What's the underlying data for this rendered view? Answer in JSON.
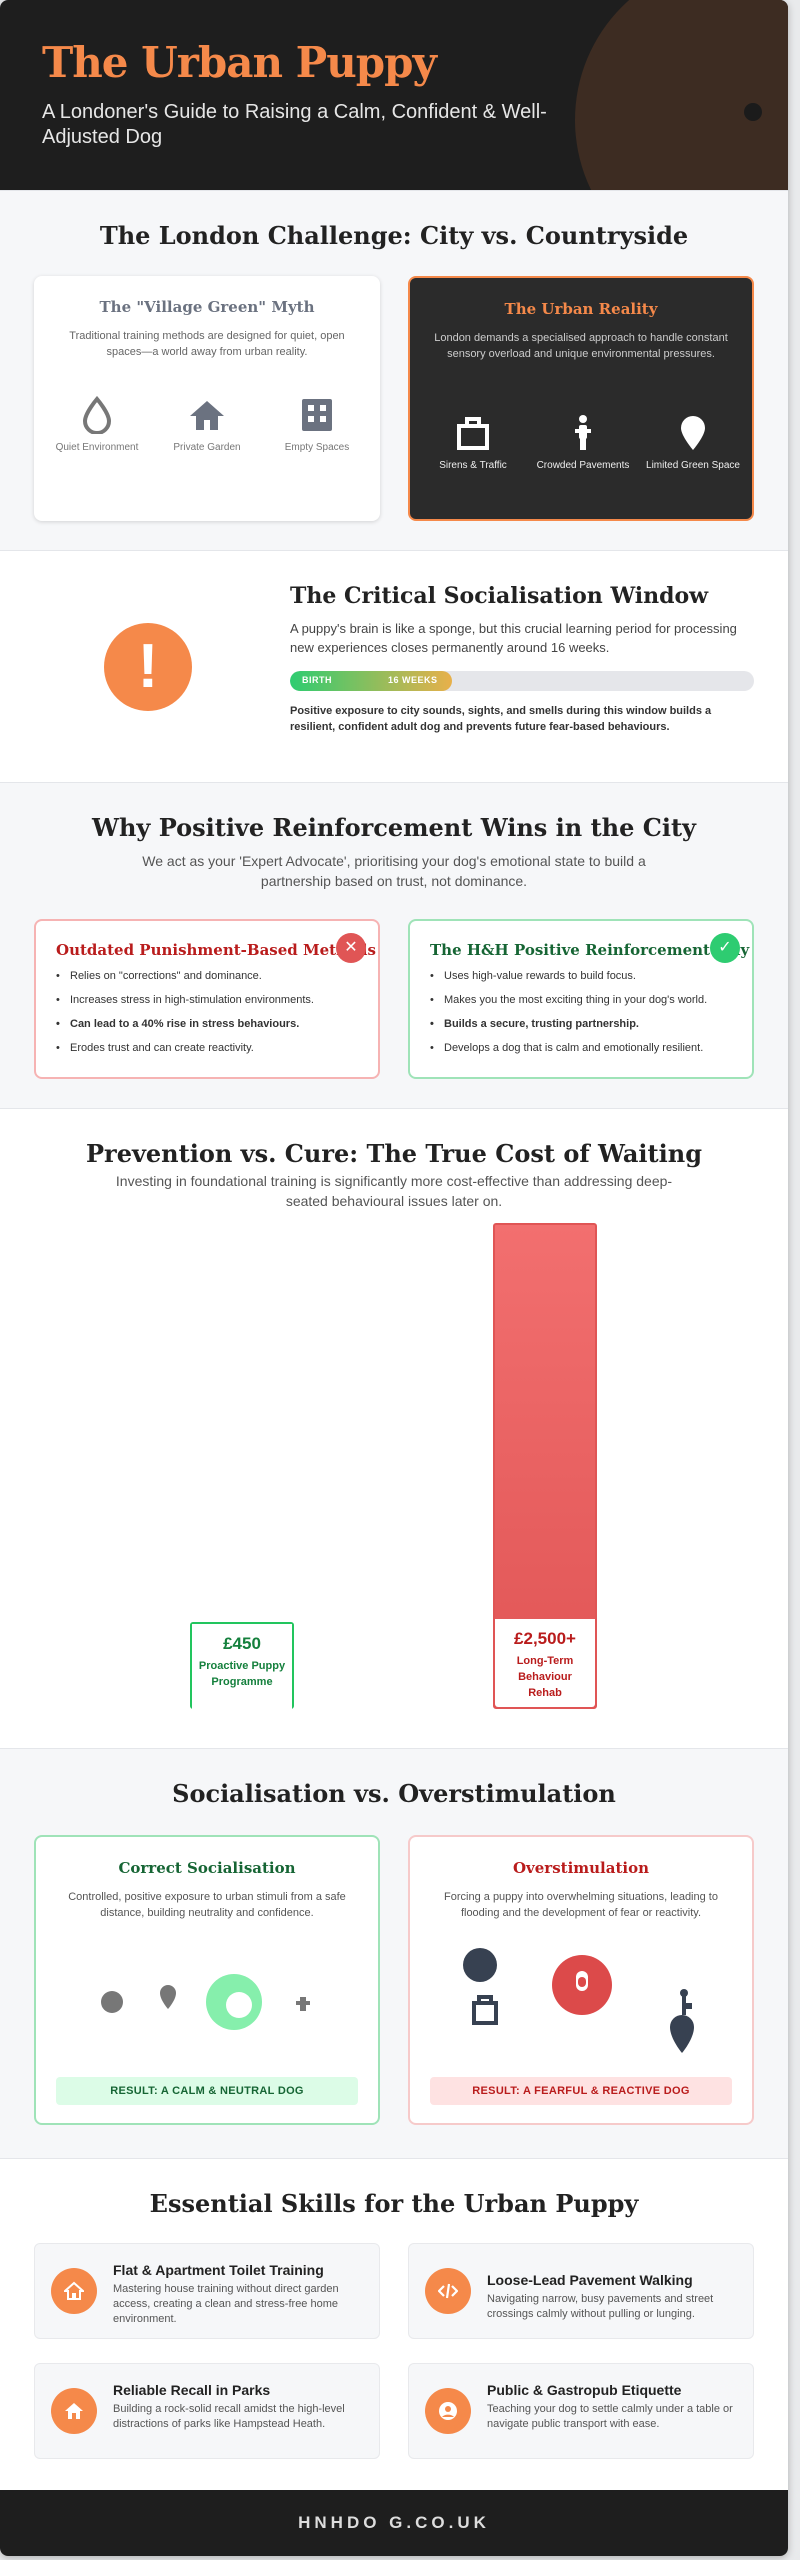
{
  "header": {
    "title": "The Urban Puppy",
    "subtitle": "A Londoner's Guide to Raising a Calm, Confident & Well-Adjusted Dog"
  },
  "challenge": {
    "title": "The London Challenge: City vs. Countryside",
    "myth": {
      "title": "The \"Village Green\" Myth",
      "desc": "Traditional training methods are designed for quiet, open spaces—a world away from urban reality.",
      "items": [
        {
          "label": "Quiet Environment",
          "icon": "droplet-icon"
        },
        {
          "label": "Private Garden",
          "icon": "house-icon"
        },
        {
          "label": "Empty Spaces",
          "icon": "building-icon"
        }
      ]
    },
    "reality": {
      "title": "The Urban Reality",
      "desc": "London demands a specialised approach to handle constant sensory overload and unique environmental pressures.",
      "items": [
        {
          "label": "Sirens & Traffic",
          "icon": "briefcase-icon"
        },
        {
          "label": "Crowded Pavements",
          "icon": "person-icon"
        },
        {
          "label": "Limited Green Space",
          "icon": "map-pin-icon"
        }
      ]
    }
  },
  "window": {
    "title": "The Critical Socialisation Window",
    "text": "A puppy's brain is like a sponge, but this crucial learning period for processing new experiences closes permanently around 16 weeks.",
    "bar_start": "BIRTH",
    "bar_end": "16 WEEKS",
    "bar_fraction": 0.35,
    "note": "Positive exposure to city sounds, sights, and smells during this window builds a resilient, confident adult dog and prevents future fear-based behaviours."
  },
  "reinforcement": {
    "title": "Why Positive Reinforcement Wins in the City",
    "subtitle": "We act as your 'Expert Advocate', prioritising your dog's emotional state to build a partnership based on trust, not dominance.",
    "old": {
      "title": "Outdated Punishment-Based Methods",
      "items": [
        "Relies on \"corrections\" and dominance.",
        "Increases stress in high-stimulation environments.",
        "Can lead to a 40% rise in stress behaviours.",
        "Erodes trust and can create reactivity."
      ]
    },
    "new": {
      "title": "The H&H Positive Reinforcement Way",
      "items": [
        "Uses high-value rewards to build focus.",
        "Makes you the most exciting thing in your dog's world.",
        "Builds a secure, trusting partnership.",
        "Develops a dog that is calm and emotionally resilient."
      ]
    }
  },
  "prevention": {
    "title": "Prevention vs. Cure: The True Cost of Waiting",
    "subtitle": "Investing in foundational training is significantly more cost-effective than addressing deep-seated behavioural issues later on."
  },
  "chart_data": {
    "type": "bar",
    "categories": [
      "Proactive Puppy Programme",
      "Long-Term Behaviour Rehab"
    ],
    "values": [
      450,
      2500
    ],
    "value_labels": [
      "£450",
      "£2,500+"
    ],
    "colors": [
      "#2ecc71",
      "#e05555"
    ]
  },
  "overstim": {
    "title": "Socialisation vs. Overstimulation",
    "correct": {
      "title": "Correct Socialisation",
      "desc": "Controlled, positive exposure to urban stimuli from a safe distance, building neutrality and confidence.",
      "result": "RESULT: A CALM & NEUTRAL DOG"
    },
    "over": {
      "title": "Overstimulation",
      "desc": "Forcing a puppy into overwhelming situations, leading to flooding and the development of fear or reactivity.",
      "result": "RESULT: A FEARFUL & REACTIVE DOG"
    }
  },
  "skills": {
    "title": "Essential Skills for the Urban Puppy",
    "items": [
      {
        "title": "Flat & Apartment Toilet Training",
        "desc": "Mastering house training without direct garden access, creating a clean and stress-free home environment.",
        "icon": "home-icon"
      },
      {
        "title": "Loose-Lead Pavement Walking",
        "desc": "Navigating narrow, busy pavements and street crossings calmly without pulling or lunging.",
        "icon": "code-icon"
      },
      {
        "title": "Reliable Recall in Parks",
        "desc": "Building a rock-solid recall amidst the high-level distractions of parks like Hampstead Heath.",
        "icon": "home-icon"
      },
      {
        "title": "Public & Gastropub Etiquette",
        "desc": "Teaching your dog to settle calmly under a table or navigate public transport with ease.",
        "icon": "user-circle-icon"
      }
    ]
  },
  "footer": {
    "text": "HNHDO G.CO.UK"
  }
}
